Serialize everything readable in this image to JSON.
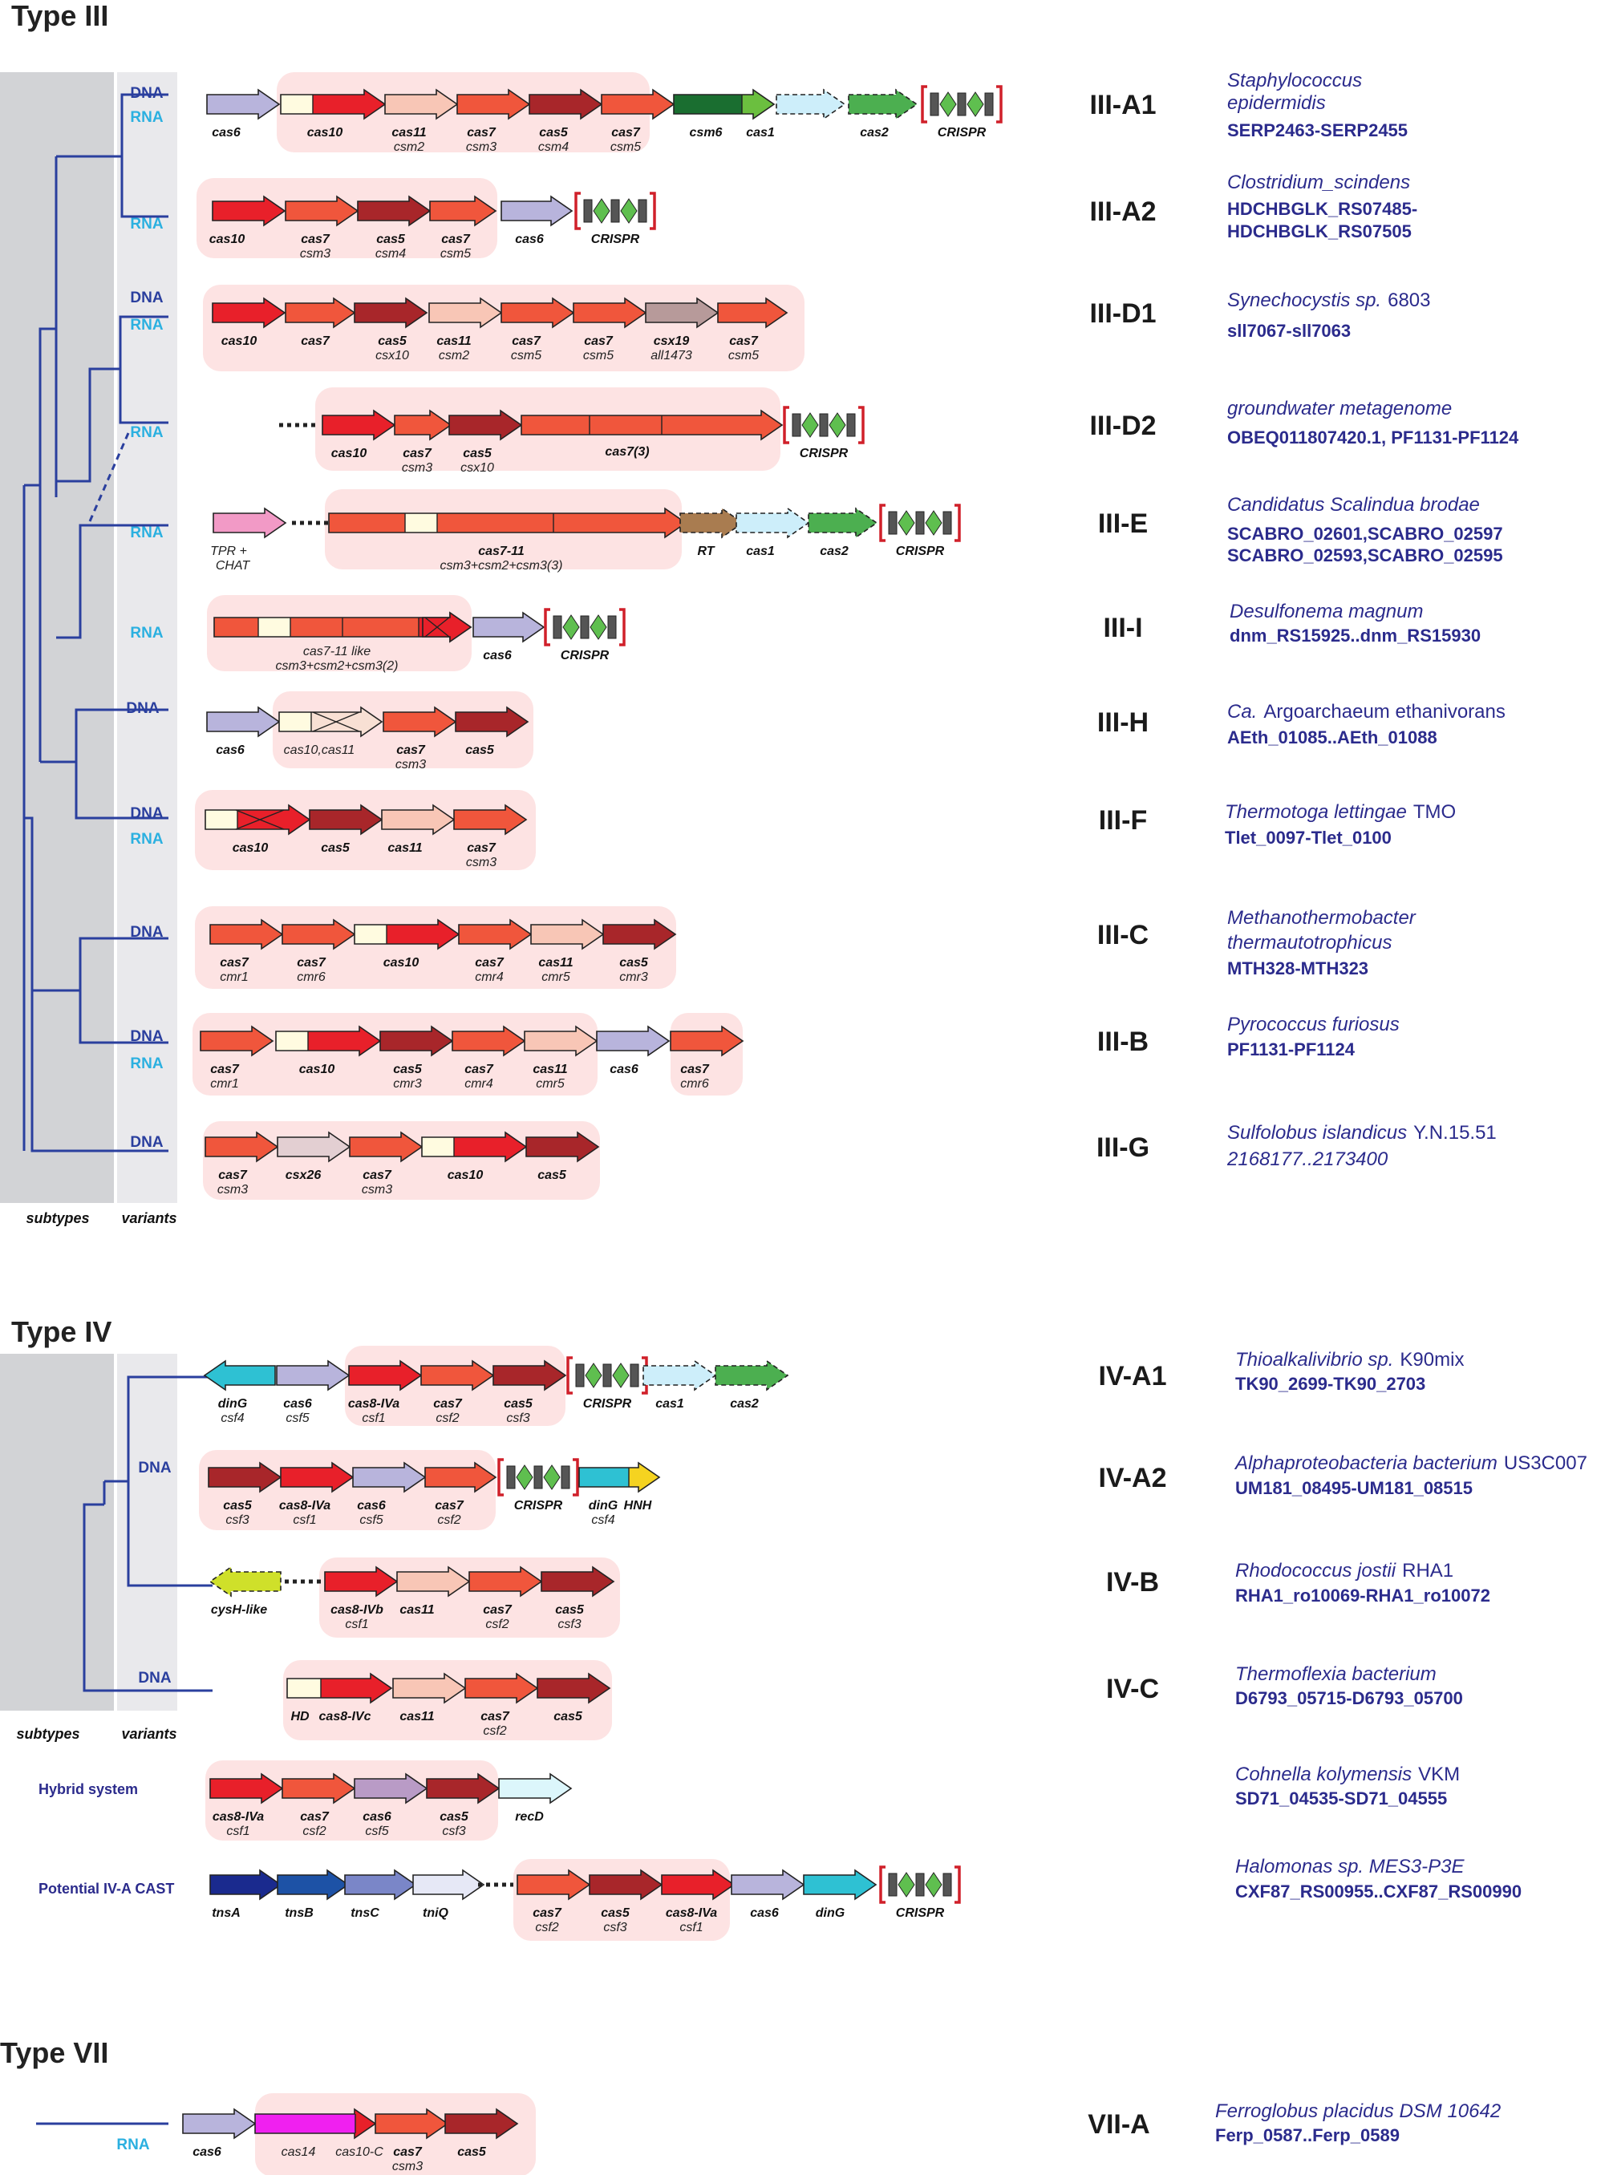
{
  "sections": {
    "type3": "Type III",
    "type4": "Type IV",
    "type7": "Type VII"
  },
  "axes": {
    "subtypes": "subtypes",
    "variants": "variants"
  },
  "variants": {
    "dna": "DNA",
    "rna": "RNA"
  },
  "crispr_label": "CRISPR",
  "hybrid_labels": {
    "hybrid": "Hybrid system",
    "potential": "Potential IV-A CAST"
  },
  "loci": [
    {
      "subtype": "III-A1",
      "org1": "Staphylococcus",
      "org2": "epidermidis",
      "ids1": "SERP2463-SERP2455"
    },
    {
      "subtype": "III-A2",
      "org1": "Clostridium_scindens",
      "ids1": "HDCHBGLK_RS07485-",
      "ids2": "HDCHBGLK_RS07505"
    },
    {
      "subtype": "III-D1",
      "org1": "Synechocystis sp.",
      "org1n": "6803",
      "ids1": "sll7067-sll7063"
    },
    {
      "subtype": "III-D2",
      "org1": "groundwater metagenome",
      "ids1": "OBEQ011807420.1, PF1131-PF1124"
    },
    {
      "subtype": "III-E",
      "org1": "Candidatus Scalindua brodae",
      "ids1": "SCABRO_02601,SCABRO_02597",
      "ids2": "SCABRO_02593,SCABRO_02595"
    },
    {
      "subtype": "III-I",
      "org1": "Desulfonema magnum",
      "ids1": "dnm_RS15925..dnm_RS15930"
    },
    {
      "subtype": "III-H",
      "org1": "Ca.",
      "org1n": "Argoarchaeum ethanivorans",
      "ids1": "AEth_01085..AEth_01088"
    },
    {
      "subtype": "III-F",
      "org1": "Thermotoga lettingae",
      "org1n": "TMO",
      "ids1": "Tlet_0097-Tlet_0100"
    },
    {
      "subtype": "III-C",
      "org1": "Methanothermobacter",
      "org2": "thermautotrophicus",
      "ids1": "MTH328-MTH323"
    },
    {
      "subtype": "III-B",
      "org1": "Pyrococcus furiosus",
      "ids1": "PF1131-PF1124"
    },
    {
      "subtype": "III-G",
      "org1": "Sulfolobus islandicus",
      "org1n": "Y.N.15.51",
      "org2": "2168177..2173400"
    },
    {
      "subtype": "IV-A1",
      "org1": "Thioalkalivibrio sp.",
      "org1n": "K90mix",
      "ids1": "TK90_2699-TK90_2703"
    },
    {
      "subtype": "IV-A2",
      "org1": "Alphaproteobacteria bacterium",
      "org1n": "US3C007",
      "ids1": "UM181_08495-UM181_08515"
    },
    {
      "subtype": "IV-B",
      "org1": "Rhodococcus jostii",
      "org1n": "RHA1",
      "ids1": "RHA1_ro10069-RHA1_ro10072"
    },
    {
      "subtype": "IV-C",
      "org1": "Thermoflexia bacterium",
      "ids1": "D6793_05715-D6793_05700"
    },
    {
      "subtype": "",
      "org1": "Cohnella kolymensis",
      "org1n": "VKM",
      "ids1": "SD71_04535-SD71_04555"
    },
    {
      "subtype": "",
      "org1": "Halomonas sp. MES3-P3E",
      "ids1": "CXF87_RS00955..CXF87_RS00990"
    },
    {
      "subtype": "VII-A",
      "org1": "Ferroglobus placidus DSM 10642",
      "ids1": "Ferp_0587..Ferp_0589"
    }
  ],
  "genes": {
    "r1": [
      [
        "cas6",
        ""
      ],
      [
        "cas10",
        ""
      ],
      [
        "cas11",
        "csm2"
      ],
      [
        "cas7",
        "csm3"
      ],
      [
        "cas5",
        "csm4"
      ],
      [
        "cas7",
        "csm5"
      ],
      [
        "csm6",
        ""
      ],
      [
        "cas1",
        ""
      ],
      [
        "cas2",
        ""
      ]
    ],
    "r2": [
      [
        "cas10",
        ""
      ],
      [
        "cas7",
        "csm3"
      ],
      [
        "cas5",
        "csm4"
      ],
      [
        "cas7",
        "csm5"
      ],
      [
        "cas6",
        ""
      ]
    ],
    "r3": [
      [
        "cas10",
        ""
      ],
      [
        "cas7",
        ""
      ],
      [
        "cas5",
        "csx10"
      ],
      [
        "cas11",
        "csm2"
      ],
      [
        "cas7",
        "csm5"
      ],
      [
        "cas7",
        "csm5"
      ],
      [
        "csx19",
        "all1473"
      ],
      [
        "cas7",
        "csm5"
      ]
    ],
    "r4": [
      [
        "cas10",
        ""
      ],
      [
        "cas7",
        "csm3"
      ],
      [
        "cas5",
        "csx10"
      ],
      [
        "cas7(3)",
        ""
      ]
    ],
    "r5": [
      [
        "TPR +",
        "CHAT"
      ],
      [
        "cas7-11",
        "csm3+csm2+csm3(3)"
      ],
      [
        "RT",
        ""
      ],
      [
        "cas1",
        ""
      ],
      [
        "cas2",
        ""
      ]
    ],
    "r6": [
      [
        "cas7-11 like",
        "csm3+csm2+csm3(2)"
      ],
      [
        "cas6",
        ""
      ]
    ],
    "r7": [
      [
        "cas6",
        ""
      ],
      [
        "cas10,cas11",
        ""
      ],
      [
        "cas7",
        "csm3"
      ],
      [
        "cas5",
        ""
      ]
    ],
    "r8": [
      [
        "cas10",
        ""
      ],
      [
        "cas5",
        ""
      ],
      [
        "cas11",
        ""
      ],
      [
        "cas7",
        "csm3"
      ]
    ],
    "r9": [
      [
        "cas7",
        "cmr1"
      ],
      [
        "cas7",
        "cmr6"
      ],
      [
        "cas10",
        ""
      ],
      [
        "cas7",
        "cmr4"
      ],
      [
        "cas11",
        "cmr5"
      ],
      [
        "cas5",
        "cmr3"
      ]
    ],
    "r10": [
      [
        "cas7",
        "cmr1"
      ],
      [
        "cas10",
        ""
      ],
      [
        "cas5",
        "cmr3"
      ],
      [
        "cas7",
        "cmr4"
      ],
      [
        "cas11",
        "cmr5"
      ],
      [
        "cas6",
        ""
      ],
      [
        "cas7",
        "cmr6"
      ]
    ],
    "r11": [
      [
        "cas7",
        "csm3"
      ],
      [
        "csx26",
        ""
      ],
      [
        "cas7",
        "csm3"
      ],
      [
        "cas10",
        ""
      ],
      [
        "cas5",
        ""
      ]
    ],
    "r12": [
      [
        "dinG",
        "csf4"
      ],
      [
        "cas6",
        "csf5"
      ],
      [
        "cas8-IVa",
        "csf1"
      ],
      [
        "cas7",
        "csf2"
      ],
      [
        "cas5",
        "csf3"
      ],
      [
        "cas1",
        ""
      ],
      [
        "cas2",
        ""
      ]
    ],
    "r13": [
      [
        "cas5",
        "csf3"
      ],
      [
        "cas8-IVa",
        "csf1"
      ],
      [
        "cas6",
        "csf5"
      ],
      [
        "cas7",
        "csf2"
      ],
      [
        "dinG",
        "csf4"
      ],
      [
        "HNH",
        ""
      ]
    ],
    "r14": [
      [
        "cysH-like",
        ""
      ],
      [
        "cas8-IVb",
        "csf1"
      ],
      [
        "cas11",
        ""
      ],
      [
        "cas7",
        "csf2"
      ],
      [
        "cas5",
        "csf3"
      ]
    ],
    "r15": [
      [
        "HD",
        ""
      ],
      [
        "cas8-IVc",
        ""
      ],
      [
        "cas11",
        ""
      ],
      [
        "cas7",
        "csf2"
      ],
      [
        "cas5",
        ""
      ]
    ],
    "r16": [
      [
        "cas8-IVa",
        "csf1"
      ],
      [
        "cas7",
        "csf2"
      ],
      [
        "cas6",
        "csf5"
      ],
      [
        "cas5",
        "csf3"
      ],
      [
        "recD",
        ""
      ]
    ],
    "r17": [
      [
        "tnsA",
        ""
      ],
      [
        "tnsB",
        ""
      ],
      [
        "tnsC",
        ""
      ],
      [
        "tniQ",
        ""
      ],
      [
        "cas7",
        "csf2"
      ],
      [
        "cas5",
        "csf3"
      ],
      [
        "cas8-IVa",
        "csf1"
      ],
      [
        "cas6",
        ""
      ],
      [
        "dinG",
        ""
      ]
    ],
    "r18": [
      [
        "cas6",
        ""
      ],
      [
        "cas14",
        ""
      ],
      [
        "cas10-C",
        ""
      ],
      [
        "cas7",
        "csm3"
      ],
      [
        "cas5",
        ""
      ]
    ]
  },
  "colors": {
    "cas6": "#b8b4dc",
    "cas10": "#e8202a",
    "cas11": "#f8c6b6",
    "cas7": "#f0563c",
    "cas5": "#a8262a",
    "csm6": "#1a6e30",
    "cas1": "#cdeefa",
    "cas2": "#4caf50",
    "block": "#fde3e3",
    "tpr": "#f29ac6",
    "rt": "#a97c50",
    "csx19": "#b79a9a",
    "dinG": "#2ec1d3",
    "cysH": "#cfe02a",
    "hnh": "#f5d320",
    "tnsA": "#1a2a8e",
    "tnsB": "#1d52a6",
    "tnsC": "#7a86c8",
    "tniQ": "#e6e8f6",
    "cas14": "#f020f0",
    "csx26": "#e3cfd2",
    "light": "#fffbe0",
    "tree": "#2a3f9e",
    "variantsBg": "#e9e9ec",
    "subtypesBg": "#d2d3d6"
  }
}
